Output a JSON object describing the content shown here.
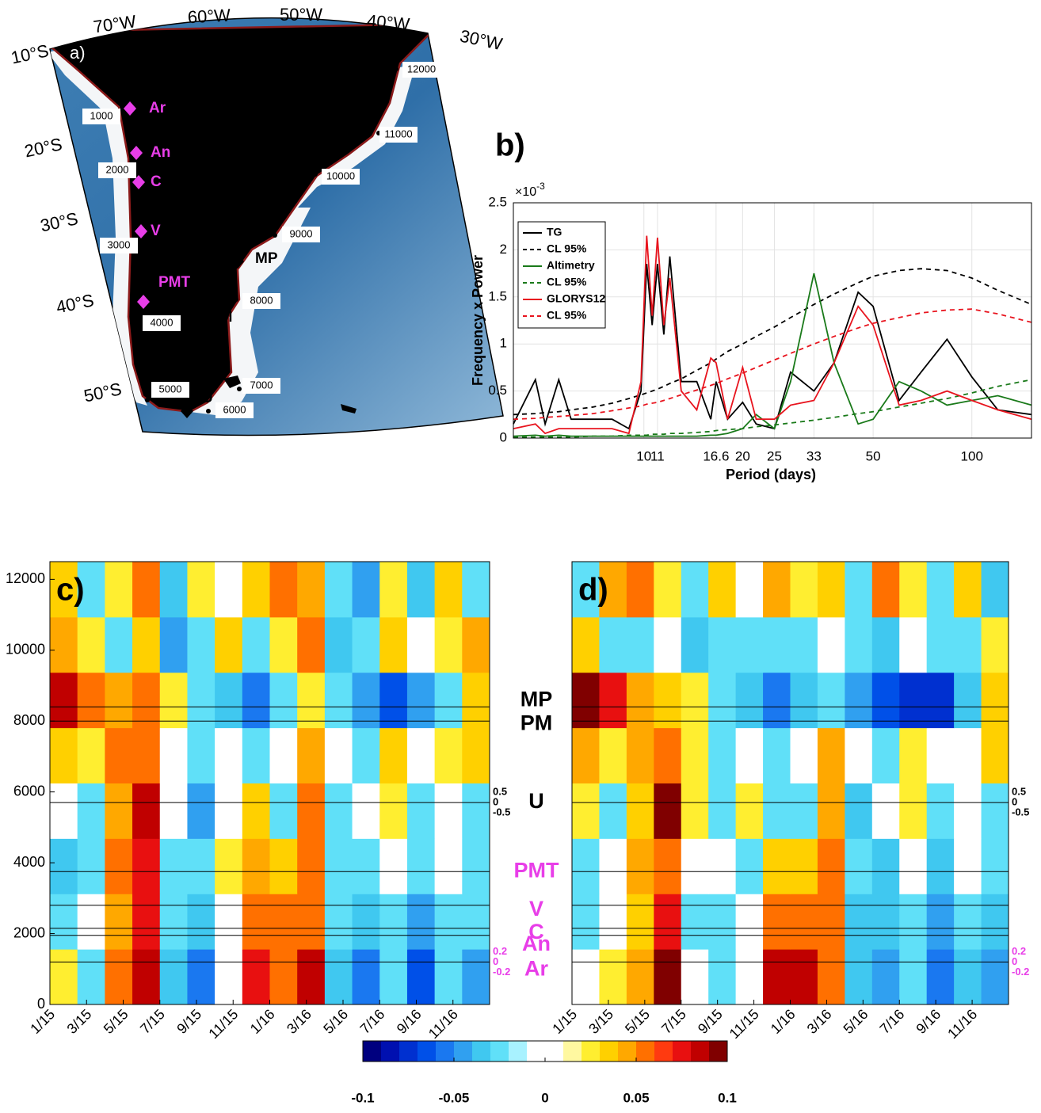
{
  "chart_data": [
    {
      "type": "map",
      "title": "a)",
      "lon_labels": [
        "70°W",
        "60°W",
        "50°W",
        "40°W",
        "30°W"
      ],
      "lat_labels": [
        "10°S",
        "20°S",
        "30°S",
        "40°S",
        "50°S"
      ],
      "distance_labels": [
        1000,
        2000,
        3000,
        4000,
        5000,
        6000,
        7000,
        8000,
        9000,
        10000,
        11000,
        12000
      ],
      "stations": [
        {
          "name": "Ar",
          "color": "#e83ee8"
        },
        {
          "name": "An",
          "color": "#e83ee8"
        },
        {
          "name": "C",
          "color": "#e83ee8"
        },
        {
          "name": "V",
          "color": "#e83ee8"
        },
        {
          "name": "PMT",
          "color": "#e83ee8"
        },
        {
          "name": "MP",
          "color": "#000000"
        },
        {
          "name": "PM",
          "color": "#000000"
        },
        {
          "name": "U",
          "color": "#000000"
        }
      ]
    },
    {
      "type": "line",
      "title": "b)",
      "xlabel": "Period (days)",
      "ylabel": "Frequency x Power",
      "exponent_base": "×10",
      "exponent": "-3",
      "xscale": "log",
      "xlim": [
        4,
        152
      ],
      "ylim": [
        0,
        2.5
      ],
      "xticks": [
        10,
        11,
        16.6,
        20,
        25,
        33,
        50,
        100
      ],
      "yticks": [
        0,
        0.5,
        1,
        1.5,
        2,
        2.5
      ],
      "grid": true,
      "legend": "upper-left",
      "x": [
        4,
        4.67,
        5,
        5.5,
        6,
        7,
        8,
        9,
        9.8,
        10.2,
        10.6,
        11,
        11.5,
        12,
        13,
        14.5,
        16,
        16.6,
        18,
        20,
        22,
        25,
        28,
        33,
        38,
        45,
        50,
        60,
        70,
        84,
        100,
        120,
        152
      ],
      "series": [
        {
          "name": "TG",
          "color": "#000000",
          "dash": false,
          "values": [
            0.15,
            0.62,
            0.15,
            0.62,
            0.2,
            0.2,
            0.2,
            0.1,
            0.5,
            1.85,
            1.2,
            1.85,
            1.1,
            1.93,
            0.6,
            0.6,
            0.2,
            0.6,
            0.2,
            0.38,
            0.15,
            0.1,
            0.7,
            0.5,
            0.8,
            1.55,
            1.4,
            0.4,
            0.7,
            1.05,
            0.65,
            0.3,
            0.25
          ]
        },
        {
          "name": "CL 95%",
          "color": "#000000",
          "dash": true,
          "values": [
            0.25,
            0.26,
            0.27,
            0.28,
            0.3,
            0.33,
            0.37,
            0.42,
            0.46,
            0.48,
            0.5,
            0.52,
            0.55,
            0.58,
            0.63,
            0.72,
            0.8,
            0.84,
            0.92,
            1.0,
            1.08,
            1.18,
            1.28,
            1.42,
            1.53,
            1.65,
            1.72,
            1.78,
            1.8,
            1.78,
            1.7,
            1.57,
            1.42
          ]
        },
        {
          "name": "Altimetry",
          "color": "#1a7a1a",
          "dash": false,
          "values": [
            0.02,
            0.03,
            0.02,
            0.03,
            0.02,
            0.02,
            0.02,
            0.02,
            0.02,
            0.02,
            0.02,
            0.02,
            0.02,
            0.02,
            0.02,
            0.02,
            0.03,
            0.03,
            0.05,
            0.1,
            0.25,
            0.1,
            0.6,
            1.75,
            0.8,
            0.15,
            0.2,
            0.6,
            0.5,
            0.35,
            0.4,
            0.45,
            0.35
          ]
        },
        {
          "name": "CL 95%",
          "color": "#1a7a1a",
          "dash": true,
          "values": [
            0.01,
            0.01,
            0.01,
            0.01,
            0.01,
            0.02,
            0.02,
            0.03,
            0.03,
            0.03,
            0.04,
            0.04,
            0.04,
            0.05,
            0.05,
            0.06,
            0.07,
            0.08,
            0.09,
            0.1,
            0.12,
            0.14,
            0.16,
            0.19,
            0.22,
            0.26,
            0.28,
            0.33,
            0.37,
            0.42,
            0.48,
            0.55,
            0.62
          ]
        },
        {
          "name": "GLORYS12",
          "color": "#e8141e",
          "dash": false,
          "values": [
            0.1,
            0.15,
            0.05,
            0.1,
            0.1,
            0.1,
            0.1,
            0.05,
            0.6,
            2.15,
            1.3,
            2.13,
            1.2,
            1.7,
            0.5,
            0.3,
            0.85,
            0.8,
            0.2,
            0.75,
            0.2,
            0.2,
            0.35,
            0.4,
            0.8,
            1.4,
            1.2,
            0.35,
            0.4,
            0.5,
            0.4,
            0.3,
            0.2
          ]
        },
        {
          "name": "CL 95%",
          "color": "#e8141e",
          "dash": true,
          "values": [
            0.2,
            0.21,
            0.22,
            0.23,
            0.24,
            0.26,
            0.29,
            0.32,
            0.34,
            0.36,
            0.37,
            0.38,
            0.4,
            0.42,
            0.46,
            0.51,
            0.56,
            0.58,
            0.63,
            0.69,
            0.75,
            0.83,
            0.9,
            1.0,
            1.08,
            1.17,
            1.22,
            1.28,
            1.33,
            1.36,
            1.37,
            1.32,
            1.23
          ]
        }
      ]
    },
    {
      "type": "heatmap",
      "title": "c)",
      "xlim": [
        0,
        24
      ],
      "ylim": [
        0,
        12500
      ],
      "xticks": [
        {
          "value": 0,
          "label": "1/15"
        },
        {
          "value": 2,
          "label": "3/15"
        },
        {
          "value": 4,
          "label": "5/15"
        },
        {
          "value": 6,
          "label": "7/15"
        },
        {
          "value": 8,
          "label": "9/15"
        },
        {
          "value": 10,
          "label": "11/15"
        },
        {
          "value": 12,
          "label": "1/16"
        },
        {
          "value": 14,
          "label": "3/16"
        },
        {
          "value": 16,
          "label": "5/16"
        },
        {
          "value": 18,
          "label": "7/16"
        },
        {
          "value": 20,
          "label": "9/16"
        },
        {
          "value": 22,
          "label": "11/16"
        }
      ],
      "yticks": [
        0,
        2000,
        4000,
        6000,
        8000,
        10000,
        12000
      ],
      "values": [
        [
          0.02,
          -0.03,
          0.05,
          0.08,
          -0.04,
          -0.06,
          0.0,
          0.07,
          0.06,
          0.08,
          -0.04,
          -0.06,
          -0.03,
          -0.07,
          -0.02,
          -0.05
        ],
        [
          -0.02,
          0.0,
          0.04,
          0.07,
          -0.03,
          -0.04,
          0.01,
          0.06,
          0.05,
          0.06,
          -0.03,
          -0.04,
          -0.02,
          -0.05,
          -0.02,
          -0.03
        ],
        [
          -0.04,
          -0.02,
          0.05,
          0.07,
          -0.02,
          -0.03,
          0.02,
          0.04,
          0.03,
          0.06,
          -0.02,
          -0.03,
          0.0,
          -0.03,
          -0.01,
          -0.02
        ],
        [
          0.0,
          -0.03,
          0.04,
          0.08,
          -0.01,
          -0.05,
          0.01,
          0.03,
          -0.02,
          0.05,
          -0.03,
          -0.01,
          0.02,
          -0.03,
          0.01,
          -0.02
        ],
        [
          0.03,
          0.02,
          0.05,
          0.06,
          0.0,
          -0.03,
          0.0,
          -0.02,
          0.0,
          0.04,
          0.0,
          -0.02,
          0.03,
          0.01,
          0.02,
          0.03
        ],
        [
          0.08,
          0.06,
          0.04,
          0.05,
          0.02,
          -0.02,
          -0.04,
          -0.06,
          -0.03,
          0.02,
          -0.03,
          -0.05,
          -0.07,
          -0.05,
          -0.02,
          0.03
        ],
        [
          0.04,
          0.02,
          -0.02,
          0.03,
          -0.05,
          -0.02,
          0.03,
          -0.03,
          0.02,
          0.05,
          -0.04,
          -0.02,
          0.03,
          -0.01,
          0.02,
          0.04
        ],
        [
          0.03,
          -0.03,
          0.02,
          0.06,
          -0.04,
          0.02,
          0.01,
          0.03,
          0.05,
          0.04,
          -0.03,
          -0.05,
          0.02,
          -0.04,
          0.03,
          -0.02
        ]
      ],
      "stations": [
        {
          "name": "MP",
          "color": "#000000",
          "distance": 8400
        },
        {
          "name": "PM",
          "color": "#000000",
          "distance": 8000
        },
        {
          "name": "U",
          "color": "#000000",
          "distance": 5700
        },
        {
          "name": "PMT",
          "color": "#e83ee8",
          "distance": 3750
        },
        {
          "name": "V",
          "color": "#e83ee8",
          "distance": 2800
        },
        {
          "name": "C",
          "color": "#e83ee8",
          "distance": 2150
        },
        {
          "name": "An",
          "color": "#e83ee8",
          "distance": 1950
        },
        {
          "name": "Ar",
          "color": "#e83ee8",
          "distance": 1200
        }
      ],
      "trace_scales": [
        {
          "distance": 5700,
          "color": "#000000",
          "ticks": [
            0.5,
            0,
            -0.5
          ]
        },
        {
          "distance": 1200,
          "color": "#e83ee8",
          "ticks": [
            0.2,
            0,
            -0.2
          ]
        }
      ]
    },
    {
      "type": "heatmap",
      "title": "d)",
      "xlim": [
        0,
        24
      ],
      "ylim": [
        0,
        12500
      ],
      "xticks": [
        {
          "value": 0,
          "label": "1/15"
        },
        {
          "value": 2,
          "label": "3/15"
        },
        {
          "value": 4,
          "label": "5/15"
        },
        {
          "value": 6,
          "label": "7/15"
        },
        {
          "value": 8,
          "label": "9/15"
        },
        {
          "value": 10,
          "label": "11/15"
        },
        {
          "value": 12,
          "label": "1/16"
        },
        {
          "value": 14,
          "label": "3/16"
        },
        {
          "value": 16,
          "label": "5/16"
        },
        {
          "value": 18,
          "label": "7/16"
        },
        {
          "value": 20,
          "label": "9/16"
        },
        {
          "value": 22,
          "label": "11/16"
        }
      ],
      "values": [
        [
          0.0,
          0.02,
          0.04,
          0.09,
          0.0,
          -0.03,
          0.01,
          0.08,
          0.08,
          0.06,
          -0.04,
          -0.05,
          -0.03,
          -0.06,
          -0.04,
          -0.05
        ],
        [
          -0.03,
          -0.01,
          0.03,
          0.07,
          -0.02,
          -0.03,
          0.01,
          0.06,
          0.05,
          0.05,
          -0.04,
          -0.04,
          -0.02,
          -0.05,
          -0.03,
          -0.04
        ],
        [
          -0.02,
          -0.01,
          0.04,
          0.06,
          -0.01,
          0.01,
          -0.02,
          0.03,
          0.03,
          0.05,
          -0.02,
          -0.04,
          -0.01,
          -0.04,
          0.0,
          -0.02
        ],
        [
          0.02,
          -0.02,
          0.03,
          0.09,
          0.02,
          -0.03,
          0.02,
          -0.03,
          -0.02,
          0.04,
          -0.04,
          0.0,
          0.02,
          -0.02,
          0.01,
          -0.02
        ],
        [
          0.04,
          0.02,
          0.04,
          0.05,
          0.02,
          -0.02,
          0.0,
          -0.03,
          0.01,
          0.04,
          -0.01,
          -0.03,
          0.02,
          0.0,
          0.01,
          0.03
        ],
        [
          0.09,
          0.07,
          0.04,
          0.03,
          0.02,
          -0.02,
          -0.04,
          -0.06,
          -0.04,
          -0.02,
          -0.05,
          -0.07,
          -0.08,
          -0.08,
          -0.04,
          0.03
        ],
        [
          0.03,
          -0.02,
          -0.03,
          0.0,
          -0.04,
          -0.02,
          -0.03,
          -0.02,
          -0.03,
          0.0,
          -0.03,
          -0.04,
          0.0,
          -0.03,
          -0.02,
          0.02
        ],
        [
          -0.02,
          0.04,
          0.05,
          0.02,
          -0.03,
          0.03,
          0.01,
          0.04,
          0.02,
          0.03,
          -0.03,
          0.05,
          0.02,
          -0.03,
          0.03,
          -0.04
        ]
      ],
      "station_lines": [
        8400,
        8000,
        5700,
        3750,
        2800,
        2150,
        1950,
        1200
      ],
      "trace_scales": [
        {
          "distance": 5700,
          "color": "#000000",
          "ticks": [
            0.5,
            0,
            -0.5
          ]
        },
        {
          "distance": 1200,
          "color": "#e83ee8",
          "ticks": [
            0.2,
            0,
            -0.2
          ]
        }
      ]
    },
    {
      "type": "colorbar",
      "clim": [
        -0.1,
        0.1
      ],
      "ticks": [
        -0.1,
        -0.05,
        0,
        0.05,
        0.1
      ],
      "colors": [
        "#00007f",
        "#0010b0",
        "#0030d0",
        "#0050e8",
        "#1a78f0",
        "#30a0f0",
        "#40c8f0",
        "#60e0f8",
        "#a8f2ff",
        "#ffffff",
        "#ffffff",
        "#fff8a0",
        "#ffee30",
        "#ffd000",
        "#ffa800",
        "#ff7000",
        "#ff3a10",
        "#e81010",
        "#c00000",
        "#800000"
      ]
    }
  ]
}
